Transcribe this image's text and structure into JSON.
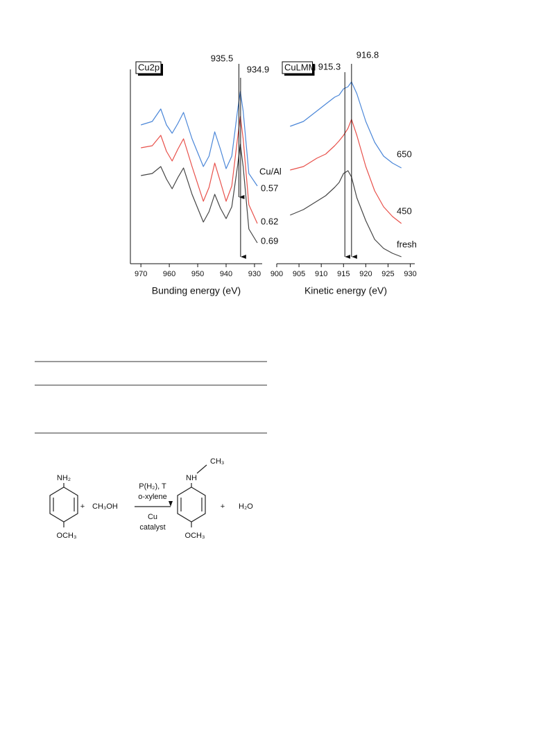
{
  "chart_data": [
    {
      "type": "line",
      "panel_label": "Cu2p",
      "x_label": "Bunding energy (eV)",
      "xlim": [
        973.7,
        927.3
      ],
      "xticks": [
        970,
        960,
        950,
        940,
        930
      ],
      "ylim": [
        0,
        30
      ],
      "y_axis_line": true,
      "legend_title": "Cu/Al",
      "markers": [
        935.5,
        934.9
      ],
      "x": [
        970,
        966,
        963,
        961,
        959,
        957,
        955,
        952,
        948,
        946,
        944,
        942,
        940,
        938,
        936,
        935,
        934,
        932,
        929
      ],
      "series": [
        {
          "name": "0.57",
          "color": "#4a86d8",
          "values": [
            20.0,
            20.5,
            22.3,
            20.0,
            18.8,
            20.2,
            21.8,
            18.0,
            14.0,
            15.5,
            19.0,
            16.5,
            13.7,
            15.5,
            22.0,
            24.8,
            22.0,
            13.0,
            11.2
          ]
        },
        {
          "name": "0.62",
          "color": "#e8504a",
          "values": [
            16.7,
            17.0,
            18.5,
            16.2,
            14.8,
            16.5,
            18.0,
            14.0,
            9.0,
            11.0,
            14.5,
            11.8,
            9.0,
            11.2,
            18.0,
            21.2,
            18.0,
            8.5,
            5.8
          ]
        },
        {
          "name": "0.69",
          "color": "#444444",
          "values": [
            12.7,
            13.0,
            14.0,
            12.2,
            10.8,
            12.4,
            13.8,
            10.0,
            6.0,
            7.5,
            10.0,
            8.0,
            6.5,
            8.2,
            14.0,
            17.2,
            14.0,
            5.0,
            3.0
          ]
        }
      ]
    },
    {
      "type": "line",
      "panel_label": "CuLMM",
      "x_label": "Kinetic energy (eV)",
      "xlim": [
        900,
        931
      ],
      "xticks": [
        900,
        905,
        910,
        915,
        920,
        925,
        930
      ],
      "ylim": [
        0,
        30
      ],
      "y_axis_line": false,
      "markers": [
        915.3,
        916.8
      ],
      "x": [
        903,
        906,
        909,
        911,
        913,
        914,
        915,
        916,
        916.8,
        918,
        920,
        922,
        924,
        926,
        928
      ],
      "series": [
        {
          "name": "650",
          "color": "#4a86d8",
          "values": [
            19.8,
            20.5,
            22.0,
            23.0,
            24.0,
            24.3,
            25.2,
            25.5,
            26.2,
            24.5,
            20.5,
            17.5,
            15.5,
            14.5,
            13.8
          ]
        },
        {
          "name": "450",
          "color": "#e8504a",
          "values": [
            13.5,
            14.0,
            15.2,
            15.8,
            17.0,
            17.7,
            18.5,
            19.5,
            20.8,
            18.5,
            14.0,
            10.5,
            8.2,
            6.8,
            5.8
          ]
        },
        {
          "name": "fresh",
          "color": "#444444",
          "values": [
            7.0,
            7.8,
            9.0,
            9.8,
            11.0,
            11.7,
            13.0,
            13.4,
            12.5,
            9.5,
            6.2,
            3.5,
            2.2,
            1.5,
            1.0
          ]
        }
      ]
    }
  ],
  "scheme": {
    "reactant": "NH₂",
    "reactant_sub": "OCH₃",
    "plus1": "+",
    "reagent": "CH₃OH",
    "conditions": [
      "P(H₂), T",
      "o-xylene"
    ],
    "catalyst": [
      "Cu",
      "catalyst"
    ],
    "product_methyl": "CH₃",
    "product_amine": "NH",
    "product_sub": "OCH₃",
    "plus2": "+",
    "byproduct": "H₂O"
  }
}
